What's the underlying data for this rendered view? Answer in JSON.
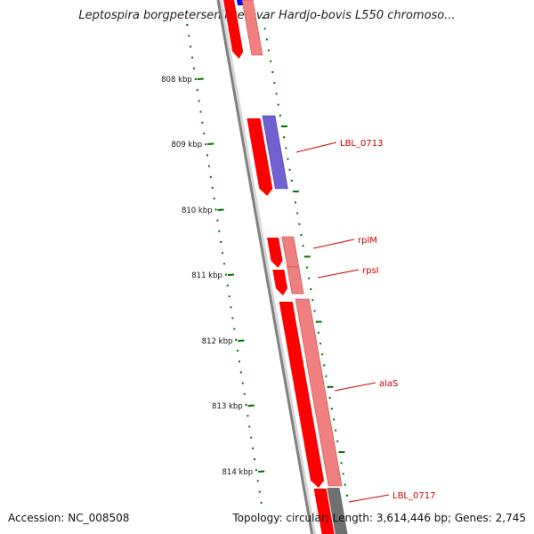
{
  "title": "Leptospira borgpetersenii serovar Hardjo-bovis L550 chromoso...",
  "accession": "Accession: NC_008508",
  "summary": "Topology: circular; Length: 3,614,446 bp; Genes: 2,745",
  "ruler": {
    "unit": "kbp",
    "ticks": [
      "808 kbp",
      "809 kbp",
      "810 kbp",
      "811 kbp",
      "812 kbp",
      "813 kbp",
      "814 kbp"
    ]
  },
  "gene_labels": [
    "LBL_0713",
    "rplM",
    "rpsI",
    "alaS",
    "LBL_0717"
  ],
  "colors": {
    "cds_reverse": "#ff0000",
    "cds_shadow": "#f08080",
    "cds_forward": "#7060d0",
    "cds_top": "#0000ff",
    "backbone": "#808080",
    "ruler": "#007000",
    "label": "#d00000"
  }
}
